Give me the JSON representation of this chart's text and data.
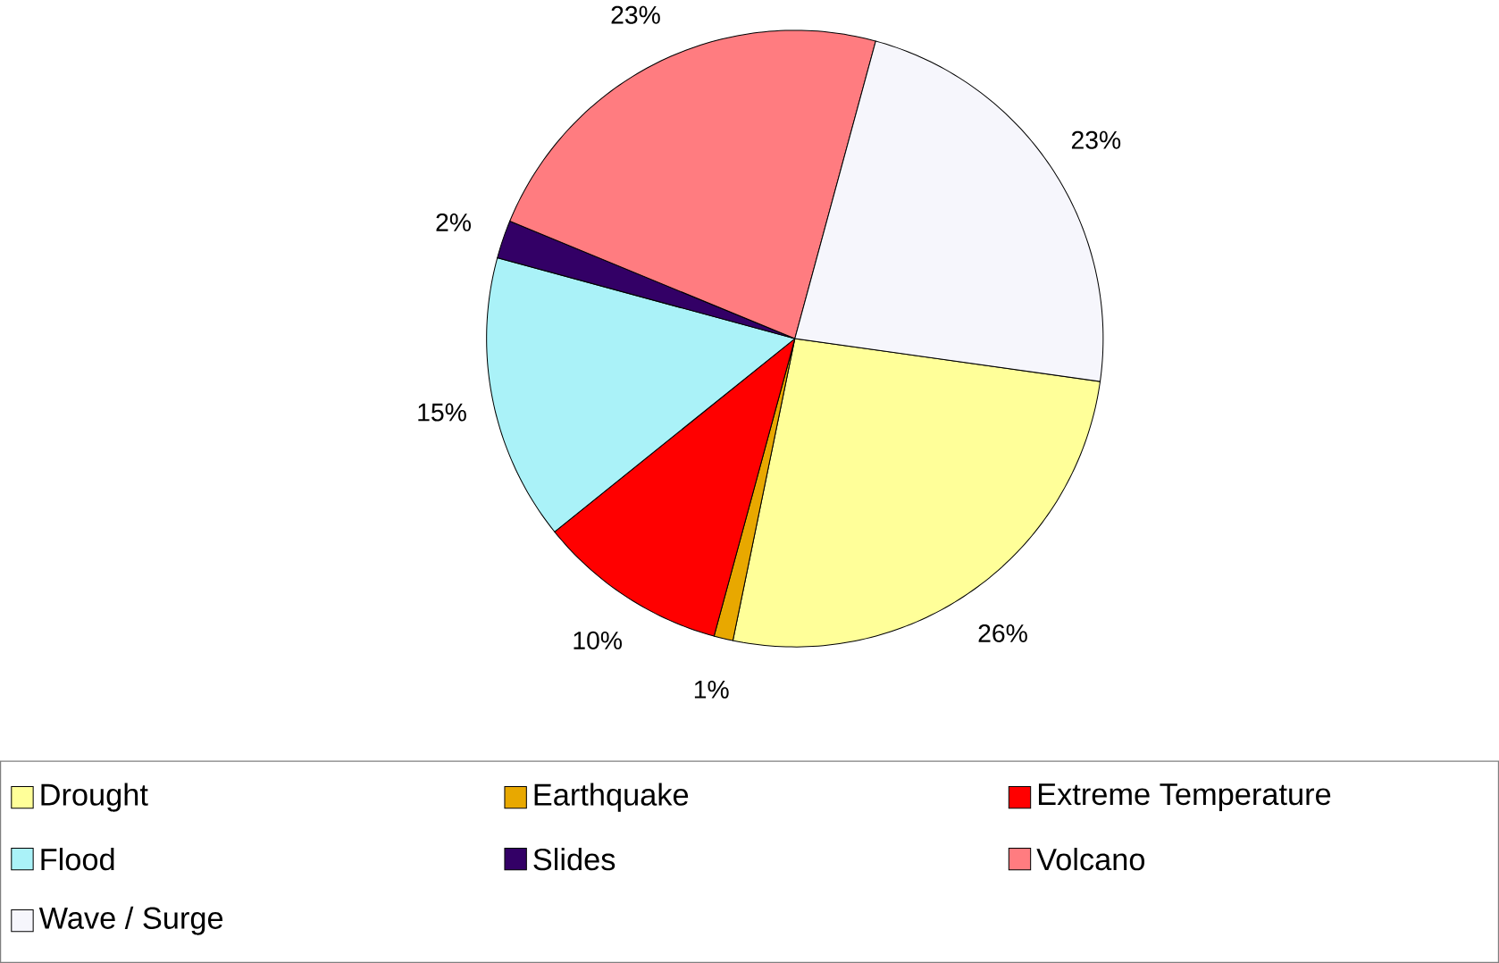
{
  "chart_data": {
    "type": "pie",
    "categories": [
      "Drought",
      "Earthquake",
      "Extreme Temperature",
      "Flood",
      "Slides",
      "Volcano",
      "Wave / Surge"
    ],
    "values": [
      26,
      1,
      10,
      15,
      2,
      23,
      23
    ],
    "colors": [
      "#ffff99",
      "#e8a800",
      "#ff0000",
      "#aaf2f8",
      "#330066",
      "#ff7c80",
      "#f6f6fc"
    ],
    "value_labels": [
      "26%",
      "1%",
      "10%",
      "15%",
      "2%",
      "23%",
      "23%"
    ],
    "legend": "bottom"
  }
}
